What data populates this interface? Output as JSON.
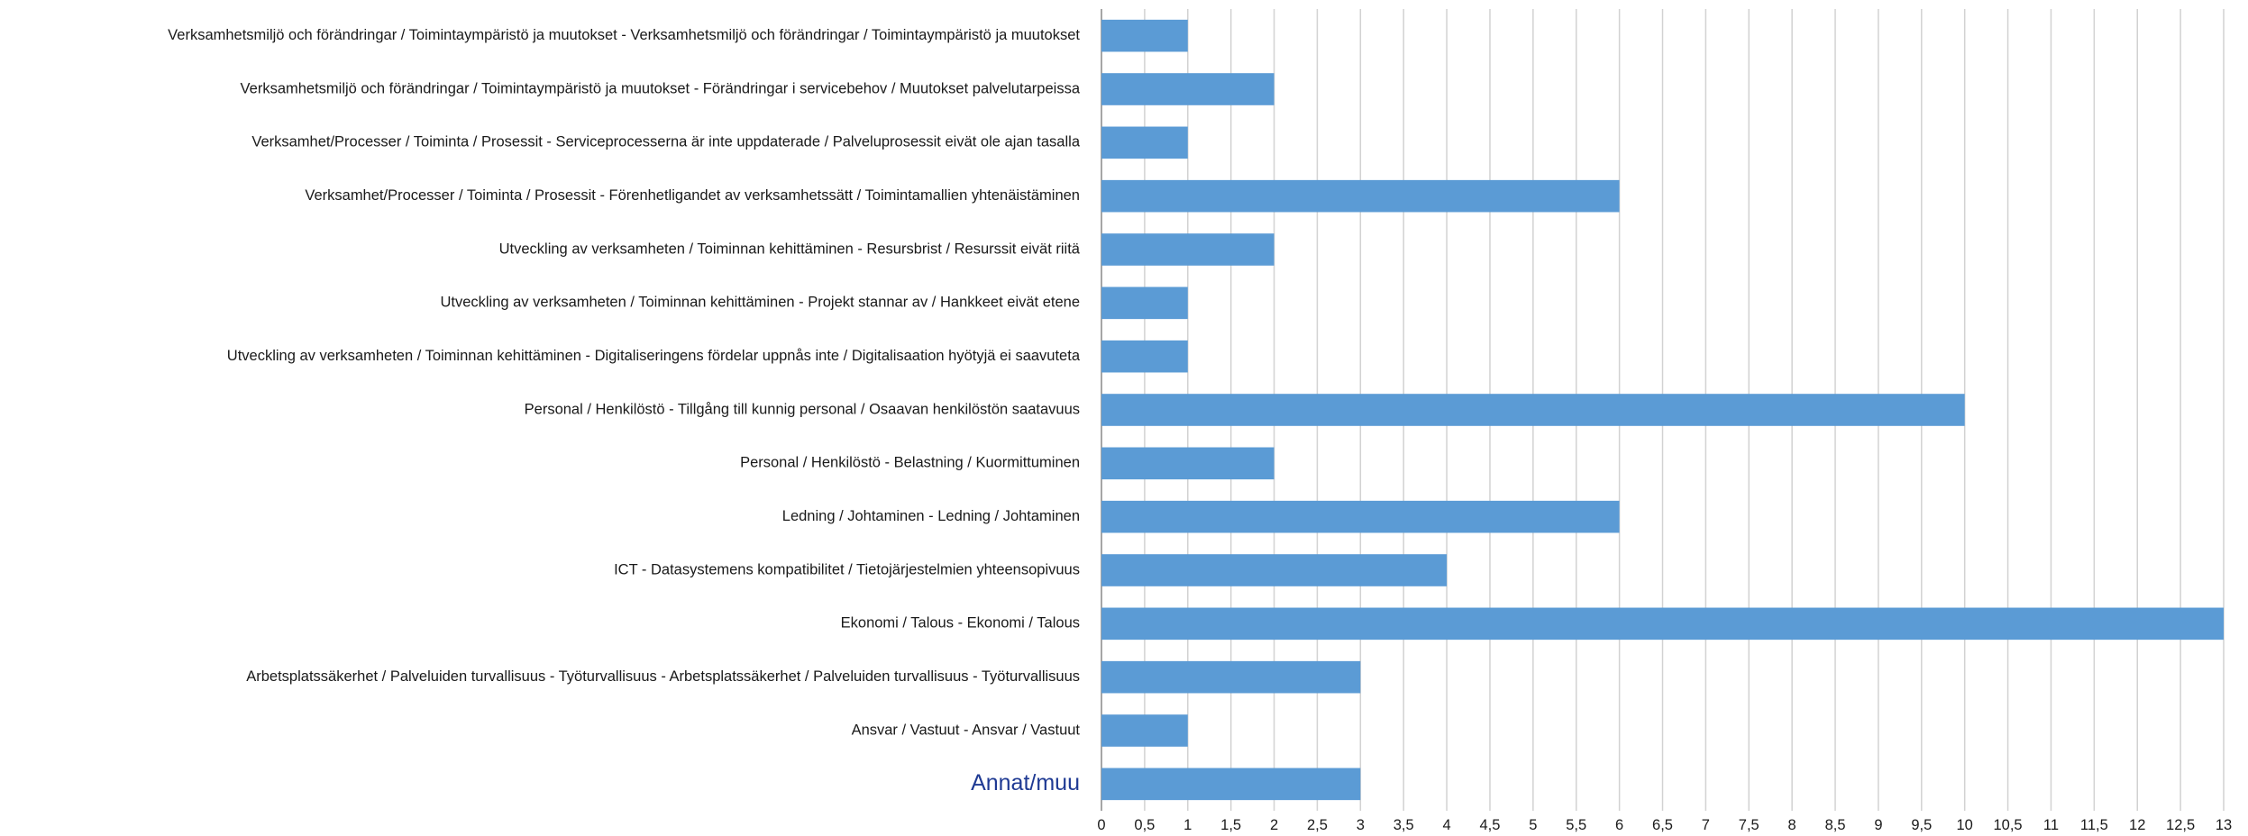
{
  "chart_data": {
    "type": "bar",
    "orientation": "horizontal",
    "categories": [
      "Verksamhetsmiljö och förändringar / Toimintaympäristö ja muutokset - Verksamhetsmiljö och förändringar / Toimintaympäristö ja muutokset",
      "Verksamhetsmiljö och förändringar / Toimintaympäristö ja muutokset - Förändringar i servicebehov / Muutokset palvelutarpeissa",
      "Verksamhet/Processer / Toiminta / Prosessit - Serviceprocesserna är inte uppdaterade / Palveluprosessit eivät ole ajan tasalla",
      "Verksamhet/Processer / Toiminta / Prosessit - Förenhetligandet av verksamhetssätt / Toimintamallien yhtenäistäminen",
      "Utveckling av verksamheten / Toiminnan kehittäminen - Resursbrist / Resurssit eivät riitä",
      "Utveckling av verksamheten / Toiminnan kehittäminen - Projekt stannar av / Hankkeet eivät etene",
      "Utveckling av verksamheten / Toiminnan kehittäminen - Digitaliseringens fördelar uppnås inte / Digitalisaation hyötyjä ei saavuteta",
      "Personal / Henkilöstö - Tillgång till kunnig personal / Osaavan henkilöstön saatavuus",
      "Personal / Henkilöstö - Belastning / Kuormittuminen",
      "Ledning / Johtaminen - Ledning / Johtaminen",
      "ICT - Datasystemens kompatibilitet / Tietojärjestelmien yhteensopivuus",
      "Ekonomi / Talous - Ekonomi / Talous",
      "Arbetsplatssäkerhet / Palveluiden turvallisuus - Työturvallisuus - Arbetsplatssäkerhet / Palveluiden turvallisuus - Työturvallisuus",
      "Ansvar / Vastuut - Ansvar / Vastuut",
      "Annat/muu"
    ],
    "values": [
      1,
      2,
      1,
      6,
      2,
      1,
      1,
      10,
      2,
      6,
      4,
      13,
      3,
      1,
      3
    ],
    "highlighted_category": "Annat/muu",
    "xlim": [
      0,
      13
    ],
    "x_tick_step": 0.5,
    "x_tick_labels": [
      "0",
      "0,5",
      "1",
      "1,5",
      "2",
      "2,5",
      "3",
      "3,5",
      "4",
      "4,5",
      "5",
      "5,5",
      "6",
      "6,5",
      "7",
      "7,5",
      "8",
      "8,5",
      "9",
      "9,5",
      "10",
      "10,5",
      "11",
      "11,5",
      "12",
      "12,5",
      "13"
    ],
    "title": "",
    "xlabel": "",
    "ylabel": "",
    "grid": "vertical",
    "legend": "none",
    "colors": {
      "bar": "#5b9bd5",
      "grid": "#d2d2d2",
      "accent_label": "#1f3a93"
    }
  }
}
